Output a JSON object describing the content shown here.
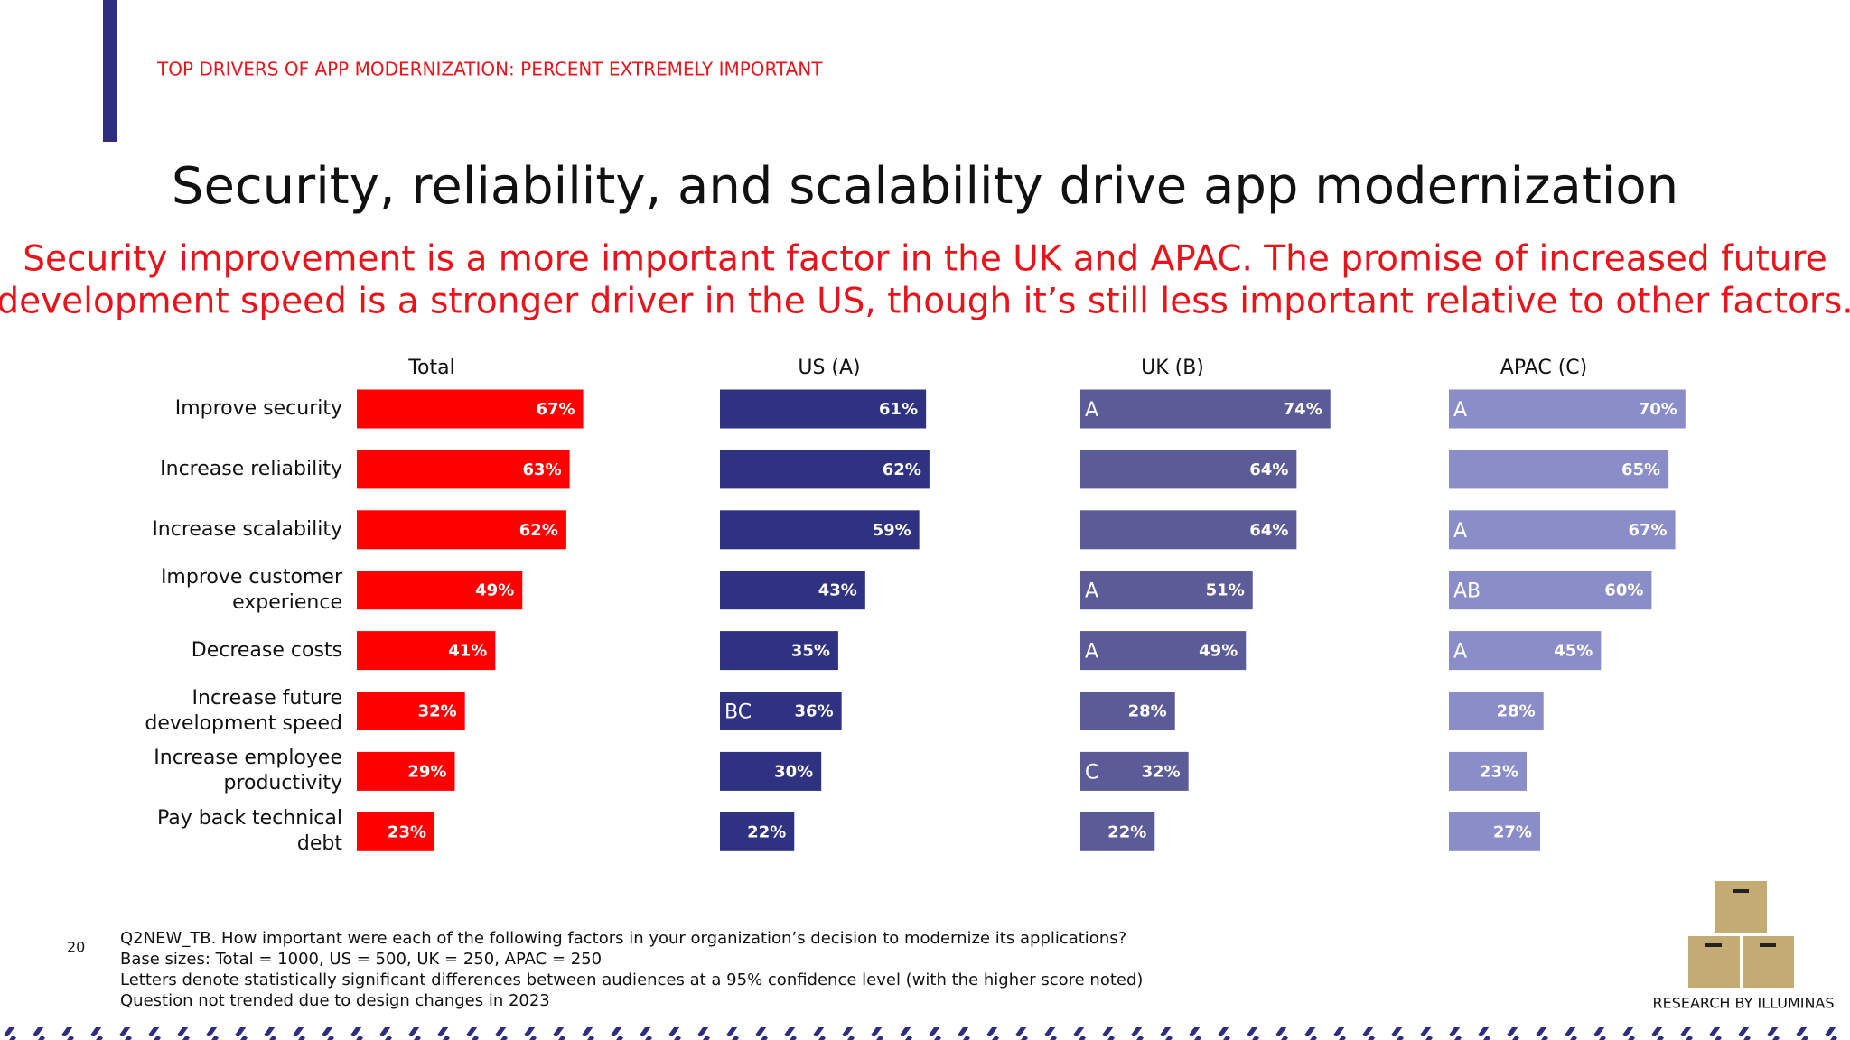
{
  "page": {
    "section_label": "TOP DRIVERS OF APP MODERNIZATION: PERCENT EXTREMELY IMPORTANT",
    "page_number": 20,
    "footnotes": [
      "Q2NEW_TB. How important were each of the following factors in your organization’s decision to modernize its applications?",
      "Base sizes: Total = 1000, US = 500, UK = 250, APAC = 250",
      "Letters denote statistically significant differences between audiences at a 95% confidence level (with the higher score noted)",
      "Question not trended due to design changes in 2023"
    ],
    "credit": "RESEARCH BY ILLUMINAS"
  },
  "chart_data": {
    "type": "bar",
    "orientation": "horizontal",
    "title": "Security, reliability, and scalability drive app modernization",
    "subtitle": [
      "Security improvement is a more important factor in the UK and APAC. The promise of increased future",
      "development speed is a stronger driver in the US, though it’s still less important relative to other factors."
    ],
    "categories": [
      "Improve security",
      "Increase reliability",
      "Increase scalability",
      "Improve customer experience",
      "Decrease costs",
      "Increase future development speed",
      "Increase employee productivity",
      "Pay back technical debt"
    ],
    "series": [
      {
        "name": "Total",
        "color": "#ff0000",
        "values": [
          67,
          63,
          62,
          49,
          41,
          32,
          29,
          23
        ],
        "value_labels": [
          "67%",
          "63%",
          "62%",
          "49%",
          "41%",
          "32%",
          "29%",
          "23%"
        ],
        "significance": [
          null,
          null,
          null,
          null,
          null,
          null,
          null,
          null
        ]
      },
      {
        "name": "US (A)",
        "color": "#2e3280",
        "values": [
          61,
          62,
          59,
          43,
          35,
          36,
          30,
          22
        ],
        "value_labels": [
          "61%",
          "62%",
          "59%",
          "43%",
          "35%",
          "36%",
          "30%",
          "22%"
        ],
        "significance": [
          null,
          null,
          null,
          null,
          null,
          "BC",
          null,
          null
        ]
      },
      {
        "name": "UK (B)",
        "color": "#5b5b97",
        "values": [
          74,
          64,
          64,
          51,
          49,
          28,
          32,
          22
        ],
        "value_labels": [
          "74%",
          "64%",
          "64%",
          "51%",
          "49%",
          "28%",
          "32%",
          "22%"
        ],
        "significance": [
          "A",
          null,
          null,
          "A",
          "A",
          null,
          "C",
          null
        ]
      },
      {
        "name": "APAC (C)",
        "color": "#8a8dc7",
        "values": [
          70,
          65,
          67,
          60,
          45,
          28,
          23,
          27
        ],
        "value_labels": [
          "70%",
          "65%",
          "67%",
          "60%",
          "45%",
          "28%",
          "23%",
          "27%"
        ],
        "significance": [
          "A",
          null,
          "A",
          "AB",
          "A",
          null,
          null,
          null
        ]
      }
    ]
  }
}
